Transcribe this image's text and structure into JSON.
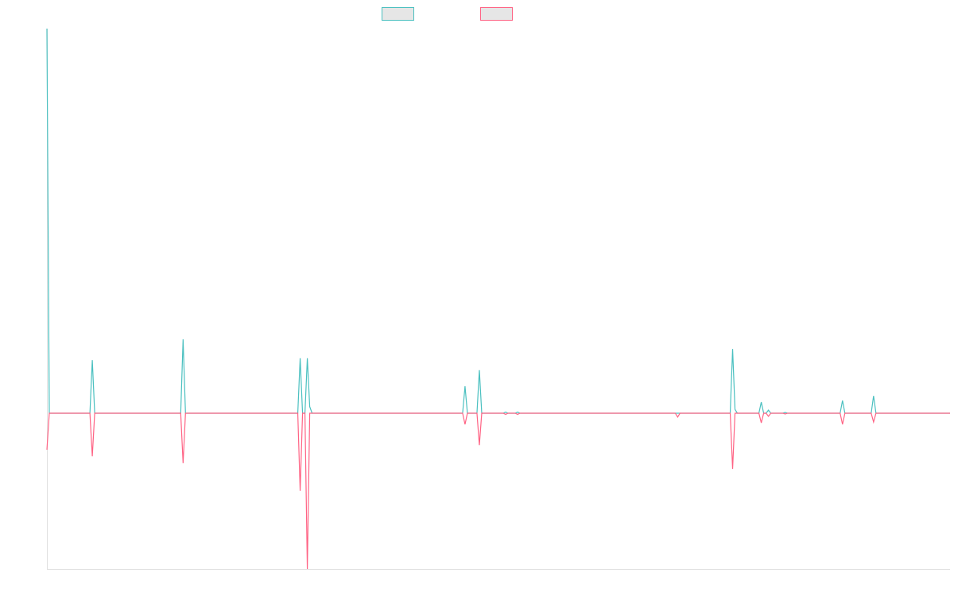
{
  "chart_data": {
    "type": "line",
    "x": [
      0,
      1,
      18,
      19,
      20,
      56,
      57,
      58,
      105,
      106,
      107,
      108,
      109,
      110,
      111,
      174,
      175,
      176,
      180,
      181,
      182,
      191,
      192,
      193,
      196,
      197,
      198,
      263,
      264,
      265,
      286,
      287,
      288,
      289,
      298,
      299,
      300,
      301,
      302,
      303,
      308,
      309,
      310,
      332,
      333,
      334,
      345,
      346,
      347,
      378
    ],
    "series": [
      {
        "color": "#4bc0c0",
        "values": [
          100,
          0,
          0,
          13.8,
          0,
          0,
          19.2,
          0,
          0,
          14.3,
          0,
          0,
          14.3,
          1.7,
          0,
          0,
          7,
          0,
          0,
          11.2,
          0,
          0,
          0.3,
          0,
          0,
          0.3,
          0,
          0,
          0,
          0,
          0,
          16.7,
          1,
          0,
          0,
          2.9,
          0,
          0,
          0.8,
          0,
          0,
          0.2,
          0,
          0,
          3.3,
          0,
          0,
          4.5,
          0,
          0
        ]
      },
      {
        "color": "#ff6384",
        "values": [
          -9.5,
          0,
          0,
          -11.2,
          0,
          0,
          -13,
          0,
          0,
          -20.2,
          0,
          0,
          -40.5,
          0,
          0,
          0,
          -2.9,
          0,
          0,
          -8.3,
          0,
          0,
          -0.3,
          0,
          0,
          -0.3,
          0,
          0,
          -1,
          0,
          0,
          -14.5,
          0,
          0,
          0,
          -2.5,
          0,
          0,
          -0.8,
          0,
          0,
          -0.2,
          0,
          0,
          -2.9,
          0,
          0,
          -2.3,
          0,
          0
        ]
      }
    ],
    "xlim": [
      0,
      378
    ],
    "ylim": [
      -40.5,
      100
    ]
  }
}
